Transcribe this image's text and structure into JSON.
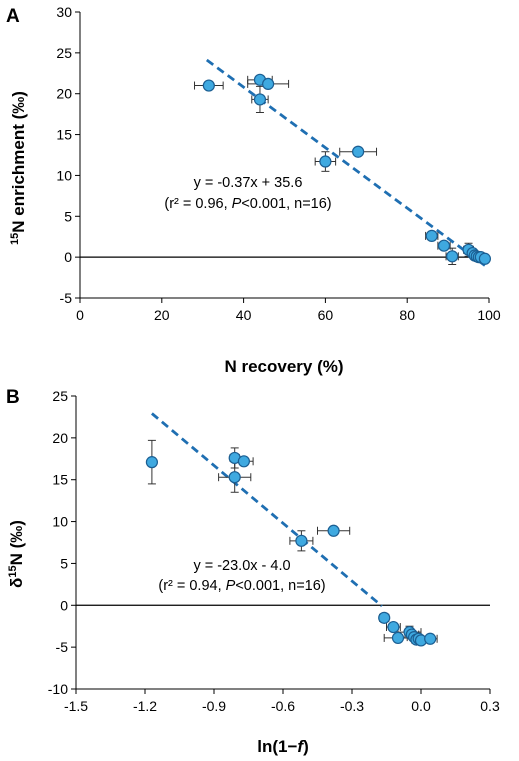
{
  "chart_data": [
    {
      "panel_label": "A",
      "type": "scatter",
      "xlabel": "N recovery (%)",
      "ylabel_super": "15",
      "ylabel_main": "N enrichment (‰)",
      "xlim": [
        0,
        100
      ],
      "ylim": [
        -5,
        30
      ],
      "xticks": [
        0,
        20,
        40,
        60,
        80,
        100
      ],
      "yticks": [
        -5,
        0,
        5,
        10,
        15,
        20,
        25,
        30
      ],
      "equation": "y = -0.37x + 35.6",
      "stats": "(r² = 0.96, P<0.001, n=16)",
      "stats_parts": [
        "(r² = 0.96, ",
        "P",
        "<0.001, n=16)"
      ],
      "fit": {
        "slope": -0.37,
        "intercept": 35.6,
        "x_from": 31,
        "x_to": 99
      },
      "points": [
        {
          "x": 31.5,
          "y": 21.0,
          "xerr": 3.5,
          "yerr": 0
        },
        {
          "x": 44.0,
          "y": 21.7,
          "xerr": 3.0,
          "yerr": 0
        },
        {
          "x": 46.0,
          "y": 21.2,
          "xerr": 5.0,
          "yerr": 0
        },
        {
          "x": 44.0,
          "y": 19.3,
          "xerr": 2.0,
          "yerr": 1.6
        },
        {
          "x": 60.0,
          "y": 11.7,
          "xerr": 2.5,
          "yerr": 1.2
        },
        {
          "x": 68.0,
          "y": 12.9,
          "xerr": 4.5,
          "yerr": 0
        },
        {
          "x": 86.0,
          "y": 2.6,
          "xerr": 1.5,
          "yerr": 0.5
        },
        {
          "x": 89.0,
          "y": 1.4,
          "xerr": 1.5,
          "yerr": 0
        },
        {
          "x": 91.0,
          "y": 0.1,
          "xerr": 1.5,
          "yerr": 1.0
        },
        {
          "x": 95.0,
          "y": 0.9,
          "xerr": 1.2,
          "yerr": 0.8
        },
        {
          "x": 96.0,
          "y": 0.5,
          "xerr": 1.0,
          "yerr": 0
        },
        {
          "x": 96.5,
          "y": 0.2,
          "xerr": 0.8,
          "yerr": 0
        },
        {
          "x": 97.0,
          "y": 0.1,
          "xerr": 0.8,
          "yerr": 0
        },
        {
          "x": 97.5,
          "y": 0.0,
          "xerr": 0,
          "yerr": 0
        },
        {
          "x": 98.0,
          "y": 0.0,
          "xerr": 0,
          "yerr": 0
        },
        {
          "x": 99.0,
          "y": -0.2,
          "xerr": 0,
          "yerr": 0
        }
      ]
    },
    {
      "panel_label": "B",
      "type": "scatter",
      "xlabel": "ln(1−f)",
      "xlabel_parts": [
        "ln(1−",
        "f",
        ")"
      ],
      "ylabel_prefix": "δ",
      "ylabel_super": "15",
      "ylabel_main": "N (‰)",
      "xlim": [
        -1.5,
        0.3
      ],
      "ylim": [
        -10,
        25
      ],
      "xticks": [
        -1.5,
        -1.2,
        -0.9,
        -0.6,
        -0.3,
        0.0,
        0.3
      ],
      "xtick_labels": [
        "-1.5",
        "-1.2",
        "-0.9",
        "-0.6",
        "-0.3",
        "0.0",
        "0.3"
      ],
      "yticks": [
        -10,
        -5,
        0,
        5,
        10,
        15,
        20,
        25
      ],
      "equation": "y = -23.0x - 4.0",
      "stats": "(r² = 0.94, P<0.001, n=16)",
      "stats_parts": [
        "(r² = 0.94, ",
        "P",
        "<0.001, n=16)"
      ],
      "fit": {
        "slope": -23.0,
        "intercept": -4.0,
        "x_from": -1.17,
        "x_to": -0.17
      },
      "points": [
        {
          "x": -1.17,
          "y": 17.1,
          "xerr": 0,
          "yerr": 2.6
        },
        {
          "x": -0.81,
          "y": 17.6,
          "xerr": 0.02,
          "yerr": 1.2
        },
        {
          "x": -0.77,
          "y": 17.2,
          "xerr": 0.04,
          "yerr": 0
        },
        {
          "x": -0.81,
          "y": 15.3,
          "xerr": 0.07,
          "yerr": 1.8
        },
        {
          "x": -0.52,
          "y": 7.7,
          "xerr": 0.05,
          "yerr": 1.2
        },
        {
          "x": -0.38,
          "y": 8.9,
          "xerr": 0.07,
          "yerr": 0
        },
        {
          "x": -0.16,
          "y": -1.5,
          "xerr": 0.02,
          "yerr": 0.5
        },
        {
          "x": -0.12,
          "y": -2.6,
          "xerr": 0.03,
          "yerr": 0
        },
        {
          "x": -0.1,
          "y": -3.9,
          "xerr": 0.06,
          "yerr": 0
        },
        {
          "x": -0.05,
          "y": -3.2,
          "xerr": 0.05,
          "yerr": 0.7
        },
        {
          "x": -0.04,
          "y": -3.5,
          "xerr": 0.03,
          "yerr": 0
        },
        {
          "x": -0.03,
          "y": -3.8,
          "xerr": 0.03,
          "yerr": 0
        },
        {
          "x": -0.02,
          "y": -4.1,
          "xerr": 0.02,
          "yerr": 0
        },
        {
          "x": -0.01,
          "y": -4.0,
          "xerr": 0,
          "yerr": 0
        },
        {
          "x": 0.0,
          "y": -4.2,
          "xerr": 0,
          "yerr": 0
        },
        {
          "x": 0.04,
          "y": -4.0,
          "xerr": 0.03,
          "yerr": 0
        }
      ]
    }
  ]
}
